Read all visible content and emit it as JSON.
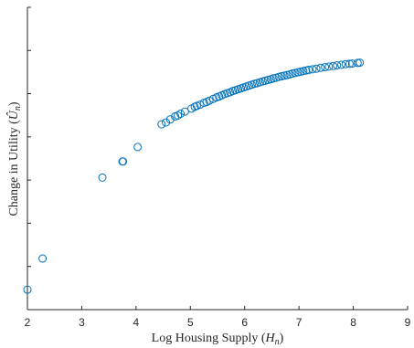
{
  "chart_data": {
    "type": "scatter",
    "title": "",
    "xlabel": "Log Housing Supply (H_n)",
    "ylabel": "Change in Utility (Û_n)",
    "xlim": [
      2,
      9
    ],
    "ylim": [
      0,
      1
    ],
    "xticks": [
      "2",
      "3",
      "4",
      "5",
      "6",
      "7",
      "8",
      "9"
    ],
    "yticks_count": 8,
    "grid": false,
    "legend": "none",
    "marker": "open-circle",
    "color": "#0072BD",
    "points": [
      {
        "x": 2.0,
        "y": 0.066
      },
      {
        "x": 2.28,
        "y": 0.169
      },
      {
        "x": 3.38,
        "y": 0.437
      },
      {
        "x": 3.75,
        "y": 0.49
      },
      {
        "x": 3.76,
        "y": 0.49
      },
      {
        "x": 4.03,
        "y": 0.538
      },
      {
        "x": 4.47,
        "y": 0.613
      },
      {
        "x": 4.55,
        "y": 0.619
      },
      {
        "x": 4.63,
        "y": 0.629
      },
      {
        "x": 4.72,
        "y": 0.639
      },
      {
        "x": 4.77,
        "y": 0.642
      },
      {
        "x": 4.82,
        "y": 0.648
      },
      {
        "x": 4.9,
        "y": 0.655
      },
      {
        "x": 5.02,
        "y": 0.665
      },
      {
        "x": 5.08,
        "y": 0.671
      },
      {
        "x": 5.12,
        "y": 0.674
      },
      {
        "x": 5.18,
        "y": 0.678
      },
      {
        "x": 5.25,
        "y": 0.684
      },
      {
        "x": 5.3,
        "y": 0.687
      },
      {
        "x": 5.35,
        "y": 0.691
      },
      {
        "x": 5.42,
        "y": 0.697
      },
      {
        "x": 5.48,
        "y": 0.702
      },
      {
        "x": 5.53,
        "y": 0.705
      },
      {
        "x": 5.58,
        "y": 0.709
      },
      {
        "x": 5.63,
        "y": 0.713
      },
      {
        "x": 5.68,
        "y": 0.716
      },
      {
        "x": 5.73,
        "y": 0.719
      },
      {
        "x": 5.78,
        "y": 0.723
      },
      {
        "x": 5.83,
        "y": 0.726
      },
      {
        "x": 5.88,
        "y": 0.729
      },
      {
        "x": 5.93,
        "y": 0.732
      },
      {
        "x": 5.98,
        "y": 0.735
      },
      {
        "x": 6.03,
        "y": 0.738
      },
      {
        "x": 6.08,
        "y": 0.741
      },
      {
        "x": 6.13,
        "y": 0.744
      },
      {
        "x": 6.18,
        "y": 0.747
      },
      {
        "x": 6.23,
        "y": 0.749
      },
      {
        "x": 6.28,
        "y": 0.752
      },
      {
        "x": 6.33,
        "y": 0.755
      },
      {
        "x": 6.38,
        "y": 0.757
      },
      {
        "x": 6.43,
        "y": 0.76
      },
      {
        "x": 6.48,
        "y": 0.762
      },
      {
        "x": 6.53,
        "y": 0.765
      },
      {
        "x": 6.58,
        "y": 0.767
      },
      {
        "x": 6.63,
        "y": 0.77
      },
      {
        "x": 6.68,
        "y": 0.772
      },
      {
        "x": 6.73,
        "y": 0.774
      },
      {
        "x": 6.78,
        "y": 0.776
      },
      {
        "x": 6.83,
        "y": 0.778
      },
      {
        "x": 6.88,
        "y": 0.781
      },
      {
        "x": 6.93,
        "y": 0.783
      },
      {
        "x": 6.98,
        "y": 0.785
      },
      {
        "x": 7.03,
        "y": 0.787
      },
      {
        "x": 7.08,
        "y": 0.789
      },
      {
        "x": 7.13,
        "y": 0.791
      },
      {
        "x": 7.18,
        "y": 0.793
      },
      {
        "x": 7.25,
        "y": 0.795
      },
      {
        "x": 7.32,
        "y": 0.797
      },
      {
        "x": 7.4,
        "y": 0.8
      },
      {
        "x": 7.48,
        "y": 0.802
      },
      {
        "x": 7.55,
        "y": 0.804
      },
      {
        "x": 7.63,
        "y": 0.806
      },
      {
        "x": 7.7,
        "y": 0.808
      },
      {
        "x": 7.78,
        "y": 0.81
      },
      {
        "x": 7.86,
        "y": 0.812
      },
      {
        "x": 7.93,
        "y": 0.813
      },
      {
        "x": 7.98,
        "y": 0.814
      },
      {
        "x": 8.08,
        "y": 0.816
      },
      {
        "x": 8.12,
        "y": 0.817
      }
    ]
  }
}
